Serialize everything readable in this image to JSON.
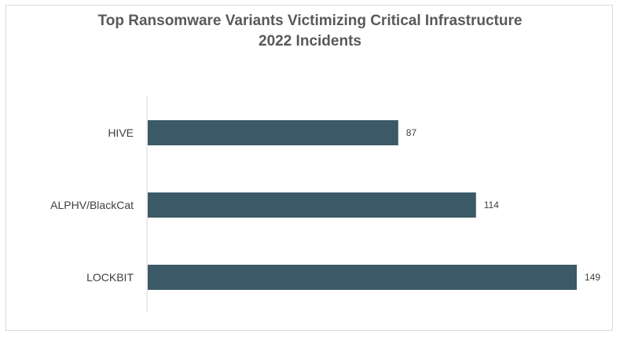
{
  "chart_data": {
    "type": "bar",
    "orientation": "horizontal",
    "title": "Top Ransomware Variants Victimizing Critical Infrastructure",
    "subtitle": "2022 Incidents",
    "categories": [
      "HIVE",
      "ALPHV/BlackCat",
      "LOCKBIT"
    ],
    "values": [
      87,
      114,
      149
    ],
    "xlim": [
      0,
      149
    ],
    "grid": false,
    "legend": "none",
    "data_labels": true,
    "bar_color": "#3b5967"
  }
}
